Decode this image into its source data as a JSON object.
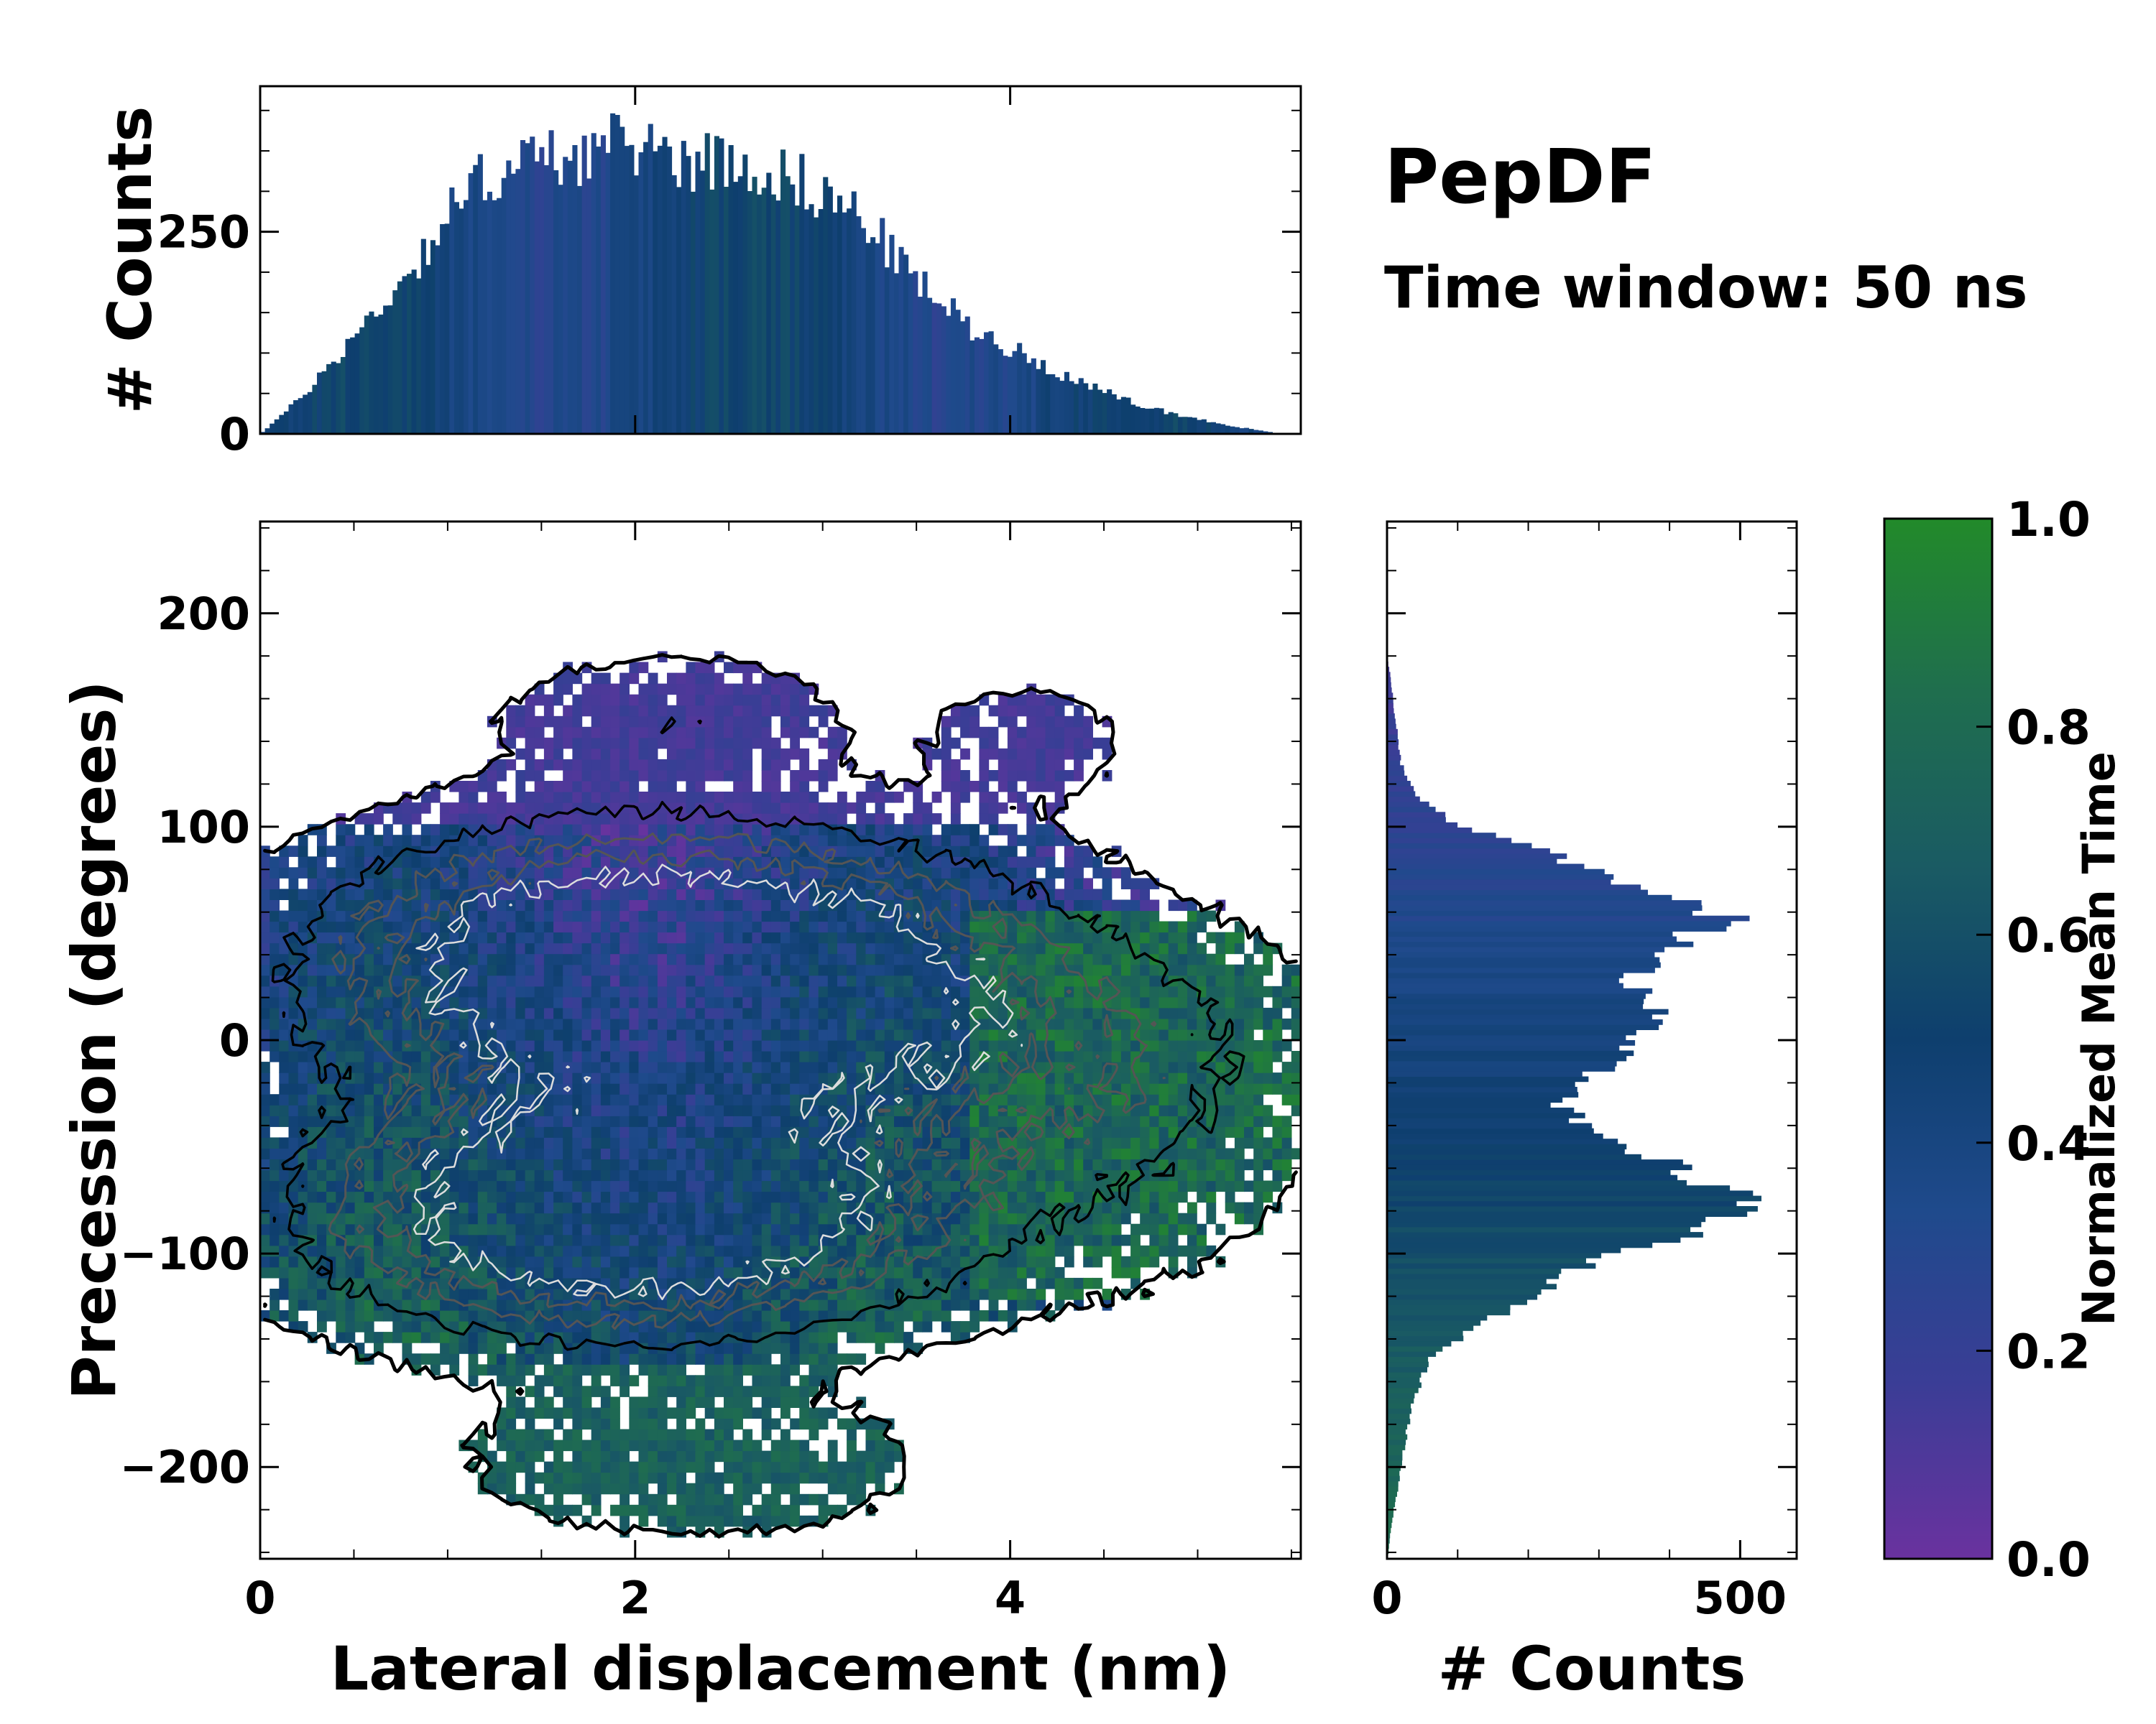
{
  "title": "PepDF",
  "subtitle": "Time window: 50 ns",
  "colors": {
    "colormap": [
      "#6a329f",
      "#3b3d96",
      "#1f4a8c",
      "#0e3f6e",
      "#1a5b63",
      "#1f6e4e",
      "#228a2a"
    ],
    "contour_dark": "#000000",
    "contour_mid": "#555555",
    "contour_light": "#dddddd"
  },
  "chart_data": [
    {
      "name": "main_2d_histogram",
      "type": "heatmap",
      "xlabel": "Lateral displacement (nm)",
      "ylabel": "Precession (degrees)",
      "xlim": [
        0,
        5.55
      ],
      "ylim": [
        -243,
        243
      ],
      "xticks": [
        0,
        2,
        4
      ],
      "yticks": [
        -200,
        -100,
        0,
        100,
        200
      ],
      "xtick_labels": [
        "0",
        "2",
        "4"
      ],
      "ytick_labels": [
        "−200",
        "−100",
        "0",
        "100",
        "200"
      ],
      "value_label": "Normalized Mean Time",
      "density_centers": [
        {
          "x": 1.7,
          "y": 45,
          "sx": 0.9,
          "sy": 35,
          "w": 1.0
        },
        {
          "x": 2.9,
          "y": 40,
          "sx": 0.9,
          "sy": 35,
          "w": 0.8
        },
        {
          "x": 1.6,
          "y": -80,
          "sx": 0.9,
          "sy": 35,
          "w": 1.0
        },
        {
          "x": 2.5,
          "y": -75,
          "sx": 0.9,
          "sy": 35,
          "w": 0.9
        },
        {
          "x": 2.6,
          "y": 0,
          "sx": 1.4,
          "sy": 30,
          "w": 0.6
        },
        {
          "x": 2.2,
          "y": 150,
          "sx": 0.6,
          "sy": 20,
          "w": 0.25
        },
        {
          "x": 4.1,
          "y": 140,
          "sx": 0.35,
          "sy": 18,
          "w": 0.2
        },
        {
          "x": 2.3,
          "y": -200,
          "sx": 0.8,
          "sy": 22,
          "w": 0.25
        },
        {
          "x": 4.5,
          "y": -30,
          "sx": 0.7,
          "sy": 50,
          "w": 0.3
        }
      ]
    },
    {
      "name": "top_marginal_histogram",
      "type": "bar",
      "ylabel": "# Counts",
      "ylim": [
        0,
        430
      ],
      "yticks": [
        0,
        250
      ],
      "ytick_labels": [
        "0",
        "250"
      ],
      "x_profile": [
        [
          0.0,
          0
        ],
        [
          0.2,
          40
        ],
        [
          0.5,
          120
        ],
        [
          0.8,
          200
        ],
        [
          1.0,
          270
        ],
        [
          1.2,
          320
        ],
        [
          1.5,
          340
        ],
        [
          1.8,
          350
        ],
        [
          2.0,
          360
        ],
        [
          2.3,
          340
        ],
        [
          2.6,
          335
        ],
        [
          2.9,
          310
        ],
        [
          3.2,
          270
        ],
        [
          3.5,
          190
        ],
        [
          3.8,
          130
        ],
        [
          4.1,
          95
        ],
        [
          4.4,
          60
        ],
        [
          4.7,
          35
        ],
        [
          5.0,
          18
        ],
        [
          5.3,
          5
        ],
        [
          5.45,
          0
        ]
      ]
    },
    {
      "name": "right_marginal_histogram",
      "type": "bar",
      "orientation": "horizontal",
      "xlabel": "# Counts",
      "xlim": [
        0,
        580
      ],
      "xticks": [
        0,
        500
      ],
      "xtick_labels": [
        "0",
        "500"
      ],
      "y_profile": [
        [
          180,
          0
        ],
        [
          170,
          5
        ],
        [
          150,
          12
        ],
        [
          130,
          20
        ],
        [
          115,
          40
        ],
        [
          100,
          100
        ],
        [
          95,
          170
        ],
        [
          85,
          250
        ],
        [
          75,
          330
        ],
        [
          65,
          420
        ],
        [
          55,
          500
        ],
        [
          50,
          440
        ],
        [
          40,
          370
        ],
        [
          30,
          350
        ],
        [
          20,
          380
        ],
        [
          10,
          400
        ],
        [
          0,
          360
        ],
        [
          -10,
          320
        ],
        [
          -20,
          270
        ],
        [
          -30,
          250
        ],
        [
          -40,
          280
        ],
        [
          -50,
          340
        ],
        [
          -60,
          420
        ],
        [
          -70,
          480
        ],
        [
          -80,
          520
        ],
        [
          -90,
          440
        ],
        [
          -100,
          330
        ],
        [
          -110,
          250
        ],
        [
          -120,
          200
        ],
        [
          -130,
          150
        ],
        [
          -140,
          100
        ],
        [
          -150,
          60
        ],
        [
          -170,
          35
        ],
        [
          -190,
          25
        ],
        [
          -210,
          15
        ],
        [
          -230,
          5
        ],
        [
          -240,
          2
        ]
      ]
    },
    {
      "name": "colorbar",
      "type": "colorbar",
      "label": "Normalized Mean Time",
      "range": [
        0.0,
        1.0
      ],
      "ticks": [
        0.0,
        0.2,
        0.4,
        0.6,
        0.8,
        1.0
      ],
      "tick_labels": [
        "0.0",
        "0.2",
        "0.4",
        "0.6",
        "0.8",
        "1.0"
      ]
    }
  ]
}
